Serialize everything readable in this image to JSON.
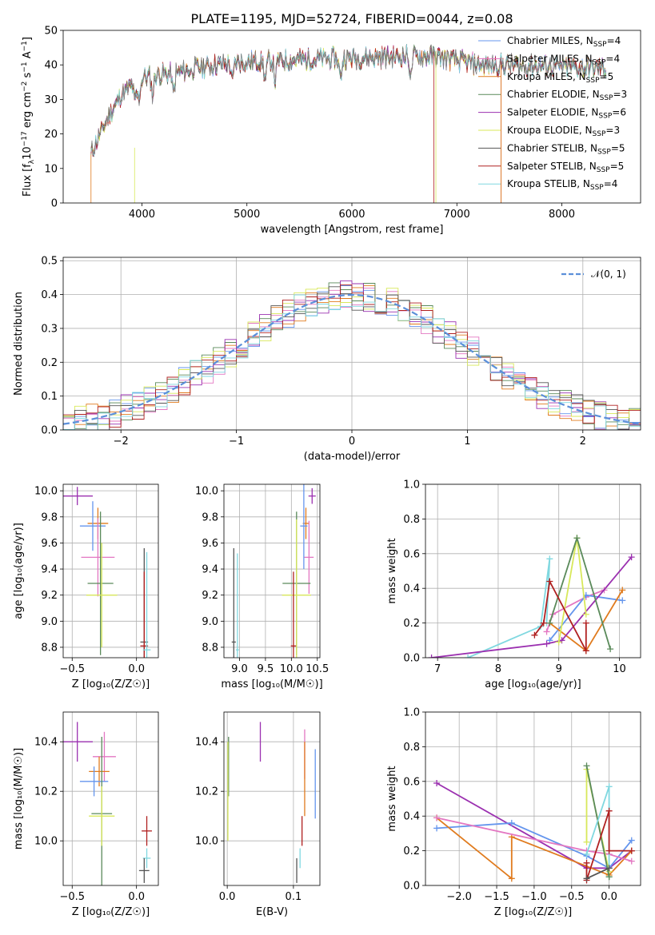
{
  "title": "PLATE=1195, MJD=52724, FIBERID=0044, z=0.08",
  "colors": {
    "chabrier_miles": "#6495ed",
    "salpeter_miles": "#e377c2",
    "kroupa_miles": "#e07b1e",
    "chabrier_elodie": "#5a8a5a",
    "salpeter_elodie": "#9b30b0",
    "kroupa_elodie": "#d8e85a",
    "chabrier_stelib": "#555555",
    "salpeter_stelib": "#b02020",
    "kroupa_stelib": "#80d8e0",
    "normal": "#5b8fd9",
    "data": "#808080"
  },
  "chart_data": [
    {
      "id": "spectrum",
      "type": "line",
      "xlabel": "wavelength [Angstrom, rest frame]",
      "ylabel_main": "Flux [f",
      "ylabel_sub": "λ",
      "ylabel_rest": "10",
      "ylabel_exp1": "−17",
      "ylabel_mid": " erg cm",
      "ylabel_exp2": "−2",
      "ylabel_mid2": " s",
      "ylabel_exp3": "−1",
      "ylabel_mid3": " A",
      "ylabel_exp4": "−1",
      "ylabel_end": "]",
      "xlim": [
        3250,
        8750
      ],
      "ylim": [
        0,
        50
      ],
      "xticks": [
        "4000",
        "5000",
        "6000",
        "7000",
        "8000"
      ],
      "xtick_values": [
        4000,
        5000,
        6000,
        7000,
        8000
      ],
      "yticks": [
        "0",
        "10",
        "20",
        "30",
        "40",
        "50"
      ],
      "ytick_values": [
        0,
        10,
        20,
        30,
        40,
        50
      ],
      "continuum": [
        [
          3510,
          14
        ],
        [
          3600,
          20
        ],
        [
          3700,
          26
        ],
        [
          3800,
          31
        ],
        [
          3900,
          34
        ],
        [
          4000,
          36
        ],
        [
          4100,
          37
        ],
        [
          4300,
          37.5
        ],
        [
          4500,
          39
        ],
        [
          4700,
          40
        ],
        [
          5000,
          41
        ],
        [
          5500,
          41.5
        ],
        [
          6000,
          42
        ],
        [
          6500,
          42.5
        ],
        [
          6800,
          42.5
        ],
        [
          7200,
          40
        ],
        [
          7500,
          40
        ],
        [
          8000,
          39.5
        ],
        [
          8400,
          39
        ]
      ],
      "legend": [
        {
          "name": "Chabrier MILES, N",
          "sub": "SSP",
          "count": "=4",
          "color": "#6495ed"
        },
        {
          "name": "Salpeter MILES, N",
          "sub": "SSP",
          "count": "=4",
          "color": "#e377c2"
        },
        {
          "name": "Kroupa MILES, N",
          "sub": "SSP",
          "count": "=5",
          "color": "#e07b1e"
        },
        {
          "name": "Chabrier ELODIE, N",
          "sub": "SSP",
          "count": "=3",
          "color": "#5a8a5a"
        },
        {
          "name": "Salpeter ELODIE, N",
          "sub": "SSP",
          "count": "=6",
          "color": "#9b30b0"
        },
        {
          "name": "Kroupa ELODIE, N",
          "sub": "SSP",
          "count": "=3",
          "color": "#d8e85a"
        },
        {
          "name": "Chabrier STELIB, N",
          "sub": "SSP",
          "count": "=5",
          "color": "#555555"
        },
        {
          "name": "Salpeter STELIB, N",
          "sub": "SSP",
          "count": "=5",
          "color": "#b02020"
        },
        {
          "name": "Kroupa STELIB, N",
          "sub": "SSP",
          "count": "=4",
          "color": "#80d8e0"
        }
      ]
    },
    {
      "id": "residuals",
      "type": "histogram",
      "xlabel": "(data-model)/error",
      "ylabel": "Normed distribution",
      "xlim": [
        -2.5,
        2.5
      ],
      "ylim": [
        0,
        0.51
      ],
      "xticks": [
        "−2",
        "−1",
        "0",
        "1",
        "2"
      ],
      "xtick_values": [
        -2,
        -1,
        0,
        1,
        2
      ],
      "yticks": [
        "0.0",
        "0.1",
        "0.2",
        "0.3",
        "0.4",
        "0.5"
      ],
      "ytick_values": [
        0,
        0.1,
        0.2,
        0.3,
        0.4,
        0.5
      ],
      "legend": "𝒩(0, 1)",
      "bin_width": 0.1
    },
    {
      "id": "age_vs_Z",
      "type": "errorbar",
      "xlabel": "Z [log₁₀(Z/Z☉)]",
      "ylabel": "age  [log₁₀(age/yr)]",
      "xlim": [
        -0.57,
        0.17
      ],
      "ylim": [
        8.72,
        10.05
      ],
      "xticks": [
        "−0.5",
        "0.0"
      ],
      "xtick_values": [
        -0.5,
        0.0
      ],
      "yticks": [
        "8.8",
        "9.0",
        "9.2",
        "9.4",
        "9.6",
        "9.8",
        "10.0"
      ],
      "ytick_values": [
        8.8,
        9.0,
        9.2,
        9.4,
        9.6,
        9.8,
        10.0
      ],
      "points": [
        {
          "color": "#9b30b0",
          "x": -0.46,
          "y": 9.96,
          "xe": 0.12,
          "ye": 0.07
        },
        {
          "color": "#e07b1e",
          "x": -0.3,
          "y": 9.75,
          "xe": 0.08,
          "ye": 0.12
        },
        {
          "color": "#6495ed",
          "x": -0.34,
          "y": 9.73,
          "xe": 0.1,
          "ye": 0.19
        },
        {
          "color": "#e377c2",
          "x": -0.3,
          "y": 9.49,
          "xe": 0.13,
          "ye": 0.3
        },
        {
          "color": "#5a8a5a",
          "x": -0.28,
          "y": 9.29,
          "xe": 0.1,
          "ye": 0.55
        },
        {
          "color": "#d8e85a",
          "x": -0.27,
          "y": 9.2,
          "xe": 0.12,
          "ye": 0.4
        },
        {
          "color": "#555555",
          "x": 0.06,
          "y": 8.84,
          "xe": 0.03,
          "ye": 0.72
        },
        {
          "color": "#b02020",
          "x": 0.06,
          "y": 8.81,
          "xe": 0.03,
          "ye": 0.57
        },
        {
          "color": "#80d8e0",
          "x": 0.08,
          "y": 8.78,
          "xe": 0.03,
          "ye": 0.75
        }
      ]
    },
    {
      "id": "age_vs_mass",
      "type": "errorbar",
      "xlabel": "mass [log₁₀(M/M☉)]",
      "ylabel": "",
      "xlim": [
        8.7,
        10.55
      ],
      "ylim": [
        8.72,
        10.05
      ],
      "xticks": [
        "9.0",
        "9.5",
        "10.0",
        "10.5"
      ],
      "xtick_values": [
        9.0,
        9.5,
        10.0,
        10.5
      ],
      "yticks": [
        "8.8",
        "9.0",
        "9.2",
        "9.4",
        "9.6",
        "9.8",
        "10.0"
      ],
      "ytick_values": [
        8.8,
        9.0,
        9.2,
        9.4,
        9.6,
        9.8,
        10.0
      ],
      "points": [
        {
          "color": "#9b30b0",
          "x": 10.4,
          "y": 9.96,
          "xe": 0.07,
          "ye": 0.06
        },
        {
          "color": "#e07b1e",
          "x": 10.28,
          "y": 9.75,
          "xe": 0.06,
          "ye": 0.12
        },
        {
          "color": "#6495ed",
          "x": 10.24,
          "y": 9.73,
          "xe": 0.07,
          "ye": 0.33
        },
        {
          "color": "#e377c2",
          "x": 10.34,
          "y": 9.49,
          "xe": 0.09,
          "ye": 0.28
        },
        {
          "color": "#5a8a5a",
          "x": 10.1,
          "y": 9.29,
          "xe": 0.27,
          "ye": 0.55
        },
        {
          "color": "#d8e85a",
          "x": 10.1,
          "y": 9.2,
          "xe": 0.28,
          "ye": 0.58
        },
        {
          "color": "#555555",
          "x": 8.89,
          "y": 8.84,
          "xe": 0.04,
          "ye": 0.72
        },
        {
          "color": "#b02020",
          "x": 10.04,
          "y": 8.81,
          "xe": 0.05,
          "ye": 0.57
        },
        {
          "color": "#80d8e0",
          "x": 8.96,
          "y": 8.78,
          "xe": 0.03,
          "ye": 0.74
        }
      ]
    },
    {
      "id": "weight_vs_age",
      "type": "line",
      "xlabel": "age  [log₁₀(age/yr)]",
      "ylabel": "mass weight",
      "xlim": [
        6.8,
        10.35
      ],
      "ylim": [
        0,
        1.0
      ],
      "xticks": [
        "7",
        "8",
        "9",
        "10"
      ],
      "xtick_values": [
        7,
        8,
        9,
        10
      ],
      "yticks": [
        "0.0",
        "0.2",
        "0.4",
        "0.6",
        "0.8",
        "1.0"
      ],
      "ytick_values": [
        0,
        0.2,
        0.4,
        0.6,
        0.8,
        1.0
      ],
      "series": [
        {
          "color": "#80d8e0",
          "x": [
            7.5,
            8.7,
            8.85,
            8.8
          ],
          "y": [
            0.0,
            0.18,
            0.57,
            0.2
          ]
        },
        {
          "color": "#e377c2",
          "x": [
            8.8,
            8.9,
            9.45,
            9.75
          ],
          "y": [
            0.15,
            0.25,
            0.35,
            0.39
          ]
        },
        {
          "color": "#6495ed",
          "x": [
            8.85,
            9.45,
            10.05
          ],
          "y": [
            0.1,
            0.36,
            0.33
          ]
        },
        {
          "color": "#e07b1e",
          "x": [
            8.85,
            9.45,
            10.05
          ],
          "y": [
            0.2,
            0.04,
            0.39
          ]
        },
        {
          "color": "#9b30b0",
          "x": [
            6.9,
            8.8,
            9.05,
            10.2
          ],
          "y": [
            0.0,
            0.08,
            0.1,
            0.58
          ]
        },
        {
          "color": "#d8e85a",
          "x": [
            9.0,
            9.3,
            9.45
          ],
          "y": [
            0.09,
            0.69,
            0.25
          ]
        },
        {
          "color": "#5a8a5a",
          "x": [
            8.85,
            9.3,
            9.85
          ],
          "y": [
            0.2,
            0.69,
            0.05
          ]
        },
        {
          "color": "#b02020",
          "x": [
            8.6,
            8.75,
            8.85,
            9.45,
            9.45
          ],
          "y": [
            0.13,
            0.2,
            0.44,
            0.04,
            0.2
          ]
        }
      ]
    },
    {
      "id": "mass_vs_Z",
      "type": "errorbar",
      "xlabel": "Z [log₁₀(Z/Z☉)]",
      "ylabel": "mass [log₁₀(M/M☉)]",
      "xlim": [
        -0.57,
        0.17
      ],
      "ylim": [
        9.82,
        10.52
      ],
      "xticks": [
        "−0.5",
        "0.0"
      ],
      "xtick_values": [
        -0.5,
        0.0
      ],
      "yticks": [
        "10.0",
        "10.2",
        "10.4"
      ],
      "ytick_values": [
        10.0,
        10.2,
        10.4
      ],
      "points": [
        {
          "color": "#9b30b0",
          "x": -0.46,
          "y": 10.4,
          "xe": 0.12,
          "ye": 0.08
        },
        {
          "color": "#e377c2",
          "x": -0.25,
          "y": 10.34,
          "xe": 0.09,
          "ye": 0.1
        },
        {
          "color": "#e07b1e",
          "x": -0.29,
          "y": 10.28,
          "xe": 0.08,
          "ye": 0.06
        },
        {
          "color": "#6495ed",
          "x": -0.33,
          "y": 10.24,
          "xe": 0.11,
          "ye": 0.06
        },
        {
          "color": "#5a8a5a",
          "x": -0.27,
          "y": 10.11,
          "xe": 0.08,
          "ye": 0.31
        },
        {
          "color": "#d8e85a",
          "x": -0.27,
          "y": 10.1,
          "xe": 0.1,
          "ye": 0.12
        },
        {
          "color": "#b02020",
          "x": 0.08,
          "y": 10.04,
          "xe": 0.04,
          "ye": 0.06
        },
        {
          "color": "#80d8e0",
          "x": 0.08,
          "y": 9.93,
          "xe": 0.03,
          "ye": 0.04
        },
        {
          "color": "#555555",
          "x": 0.06,
          "y": 9.88,
          "xe": 0.04,
          "ye": 0.05
        }
      ]
    },
    {
      "id": "mass_vs_ebv",
      "type": "errorbar",
      "xlabel": "E(B-V)",
      "ylabel": "",
      "xlim": [
        -0.005,
        0.14
      ],
      "ylim": [
        9.82,
        10.52
      ],
      "xticks": [
        "0.0",
        "0.1"
      ],
      "xtick_values": [
        0.0,
        0.1
      ],
      "yticks": [
        "10.0",
        "10.2",
        "10.4"
      ],
      "ytick_values": [
        10.0,
        10.2,
        10.4
      ],
      "points": [
        {
          "color": "#9b30b0",
          "x": 0.05,
          "y": 10.4,
          "xe": 0,
          "ye": 0.08
        },
        {
          "color": "#e377c2",
          "x": 0.117,
          "y": 10.35,
          "xe": 0,
          "ye": 0.1
        },
        {
          "color": "#e07b1e",
          "x": 0.117,
          "y": 10.25,
          "xe": 0,
          "ye": 0.15
        },
        {
          "color": "#6495ed",
          "x": 0.133,
          "y": 10.23,
          "xe": 0,
          "ye": 0.14
        },
        {
          "color": "#5a8a5a",
          "x": 0.002,
          "y": 10.3,
          "xe": 0,
          "ye": 0.12
        },
        {
          "color": "#d8e85a",
          "x": 0.001,
          "y": 10.2,
          "xe": 0,
          "ye": 0.2
        },
        {
          "color": "#b02020",
          "x": 0.113,
          "y": 10.04,
          "xe": 0,
          "ye": 0.06
        },
        {
          "color": "#80d8e0",
          "x": 0.11,
          "y": 9.93,
          "xe": 0,
          "ye": 0.04
        },
        {
          "color": "#555555",
          "x": 0.105,
          "y": 9.88,
          "xe": 0,
          "ye": 0.05
        }
      ]
    },
    {
      "id": "weight_vs_Z",
      "type": "line",
      "xlabel": "Z [log₁₀(Z/Z☉)]",
      "ylabel": "mass weight",
      "xlim": [
        -2.45,
        0.42
      ],
      "ylim": [
        0,
        1.0
      ],
      "xticks": [
        "−2.0",
        "−1.5",
        "−1.0",
        "−0.5",
        "0.0"
      ],
      "xtick_values": [
        -2.0,
        -1.5,
        -1.0,
        -0.5,
        0.0
      ],
      "yticks": [
        "0.0",
        "0.2",
        "0.4",
        "0.6",
        "0.8",
        "1.0"
      ],
      "ytick_values": [
        0,
        0.2,
        0.4,
        0.6,
        0.8,
        1.0
      ],
      "series": [
        {
          "color": "#9b30b0",
          "x": [
            -2.3,
            -0.3,
            0.0,
            0.3
          ],
          "y": [
            0.59,
            0.1,
            0.1,
            0.2
          ]
        },
        {
          "color": "#6495ed",
          "x": [
            -2.3,
            -1.3,
            -0.3,
            0.0,
            0.3
          ],
          "y": [
            0.33,
            0.36,
            0.17,
            0.1,
            0.26
          ]
        },
        {
          "color": "#e07b1e",
          "x": [
            -2.3,
            -1.3,
            -1.3,
            0.0,
            0.3
          ],
          "y": [
            0.39,
            0.04,
            0.28,
            0.06,
            0.2
          ]
        },
        {
          "color": "#e377c2",
          "x": [
            -2.3,
            -0.3,
            0.0,
            0.3
          ],
          "y": [
            0.39,
            0.2,
            0.18,
            0.14
          ]
        },
        {
          "color": "#d8e85a",
          "x": [
            -0.3,
            -0.3,
            0.0
          ],
          "y": [
            0.25,
            0.67,
            0.08
          ]
        },
        {
          "color": "#5a8a5a",
          "x": [
            -0.3,
            0.0,
            0.0
          ],
          "y": [
            0.69,
            0.05,
            0.05
          ]
        },
        {
          "color": "#80d8e0",
          "x": [
            -0.3,
            0.0,
            0.0
          ],
          "y": [
            0.18,
            0.57,
            0.1
          ]
        },
        {
          "color": "#b02020",
          "x": [
            -0.3,
            -0.3,
            0.0,
            0.0,
            0.3
          ],
          "y": [
            0.13,
            0.03,
            0.43,
            0.2,
            0.2
          ]
        },
        {
          "color": "#555555",
          "x": [
            -0.3,
            0.0
          ],
          "y": [
            0.04,
            0.1
          ]
        }
      ]
    }
  ]
}
